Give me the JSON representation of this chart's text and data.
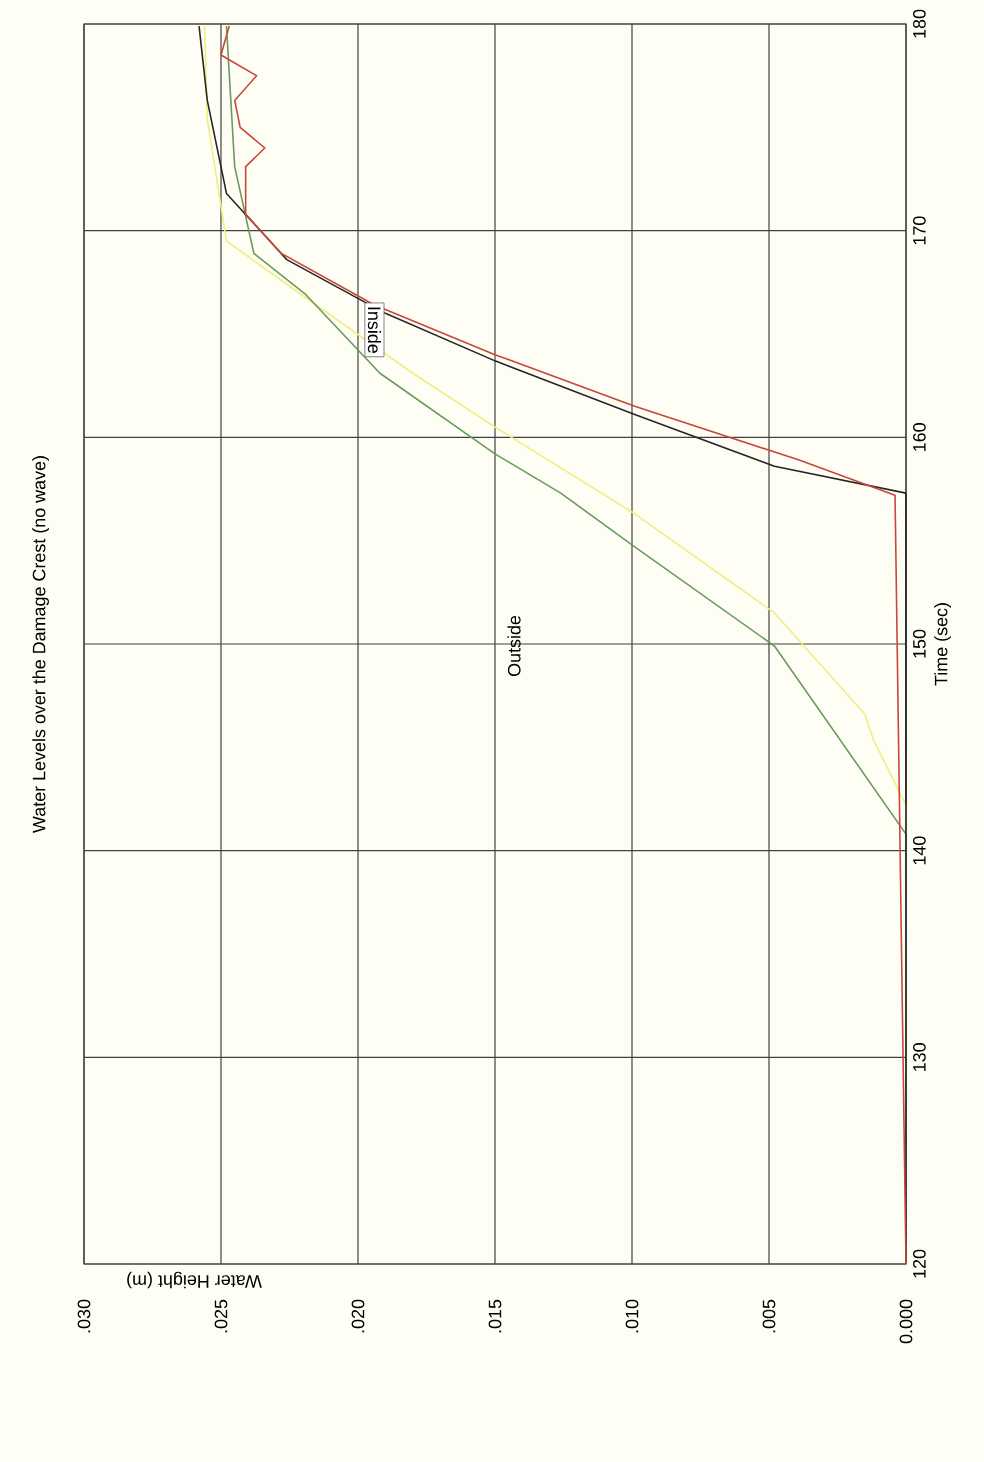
{
  "chart_data": {
    "type": "line",
    "title": "Water Levels over the Damage Crest (no wave)",
    "xlabel": "Water Height (m)",
    "ylabel": "Time (sec)",
    "xlim": [
      0.03,
      0
    ],
    "xticks": [
      {
        "value": 0.03,
        "label": ".030"
      },
      {
        "value": 0.025,
        "label": ".025"
      },
      {
        "value": 0.02,
        "label": ".020"
      },
      {
        "value": 0.015,
        "label": ".015"
      },
      {
        "value": 0.01,
        "label": ".010"
      },
      {
        "value": 0.005,
        "label": ".005"
      },
      {
        "value": 0,
        "label": "0.000"
      }
    ],
    "ylim": [
      120,
      180
    ],
    "yticks": [
      120,
      130,
      140,
      150,
      160,
      170,
      180
    ],
    "grid": true,
    "marker": "none",
    "series": [
      {
        "color": "#f0ee80",
        "x": [
          0,
          0,
          0.0012,
          0.0015,
          0.0048,
          0.0099,
          0.015,
          0.018,
          0.0228,
          0.0248,
          0.0255,
          0.0256
        ],
        "values": [
          120,
          142.2,
          145.4,
          146.6,
          151.5,
          156.3,
          160.5,
          163.1,
          167.6,
          169.5,
          175.4,
          179.9
        ]
      },
      {
        "color": "#6b9a5c",
        "x": [
          0,
          0,
          0.0048,
          0.0099,
          0.0126,
          0.015,
          0.0192,
          0.0219,
          0.0238,
          0.0245,
          0.0248
        ],
        "values": [
          120,
          140.8,
          149.9,
          154.7,
          157.3,
          159.2,
          163.1,
          166.9,
          168.9,
          173.1,
          179.9
        ]
      },
      {
        "color": "#262626",
        "x": [
          0,
          0,
          0.0048,
          0.0099,
          0.015,
          0.019,
          0.0226,
          0.0248,
          0.0255,
          0.0258
        ],
        "values": [
          120,
          157.3,
          158.6,
          161.1,
          163.7,
          166.0,
          168.6,
          171.8,
          176.3,
          179.9
        ]
      },
      {
        "color": "#c8473a",
        "x": [
          0,
          0.0004,
          0.0039,
          0.0099,
          0.015,
          0.0194,
          0.0228,
          0.0241,
          0.0241,
          0.0234,
          0.0243,
          0.0245,
          0.0237,
          0.025,
          0.0247
        ],
        "values": [
          120,
          157.2,
          158.9,
          161.5,
          164.0,
          166.4,
          168.9,
          170.8,
          173.1,
          174.0,
          175.0,
          176.3,
          177.5,
          178.5,
          179.9
        ]
      }
    ],
    "annotations": [
      {
        "text": "Inside",
        "x": 0.0194,
        "y": 165.2
      },
      "Outside"
    ]
  }
}
